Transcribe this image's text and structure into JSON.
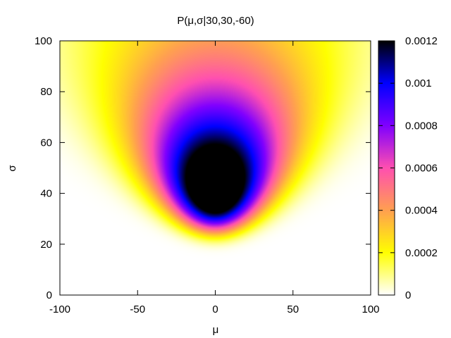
{
  "chart_data": {
    "type": "heatmap",
    "title": "P(μ,σ|30,30,-60)",
    "xlabel": "μ",
    "ylabel": "σ",
    "xlim": [
      -100,
      100
    ],
    "ylim": [
      0,
      100
    ],
    "x_ticks": [
      "-100",
      "-50",
      "0",
      "50",
      "100"
    ],
    "y_ticks": [
      "0",
      "20",
      "40",
      "60",
      "80",
      "100"
    ],
    "colorbar": {
      "range": [
        0,
        0.0012
      ],
      "ticks": [
        "0",
        "0.0002",
        "0.0004",
        "0.0006",
        "0.0008",
        "0.001",
        "0.0012"
      ],
      "palette": [
        "#ffffff",
        "#ffff00",
        "#ffa050",
        "#ff50b0",
        "#8000ff",
        "#0000ff",
        "#000000"
      ]
    },
    "peak": {
      "mu": 0,
      "sigma": 60,
      "value": 0.00118
    },
    "samples": [
      -60,
      30,
      30
    ],
    "grid": false
  }
}
